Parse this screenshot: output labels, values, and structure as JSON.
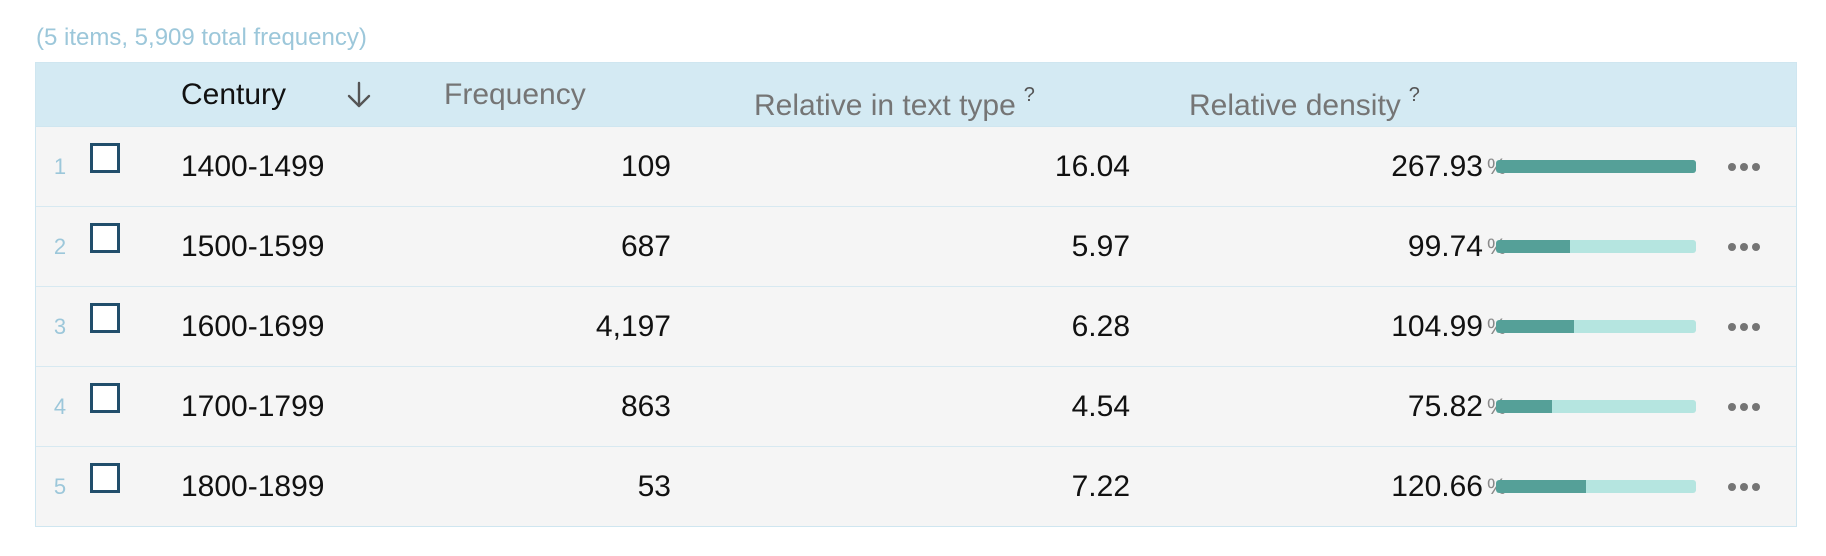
{
  "summary": "(5 items, 5,909 total frequency)",
  "columns": {
    "century": "Century",
    "frequency": "Frequency",
    "relative_text_type": "Relative in text type",
    "relative_density": "Relative density",
    "help_mark": "?"
  },
  "sort_icon": "arrow-down-icon",
  "rows": [
    {
      "index": "1",
      "century": "1400-1499",
      "frequency": "109",
      "relative_text_type": "16.04",
      "relative_density": "267.93",
      "percent_sign": "%",
      "bar_fill": 1.0
    },
    {
      "index": "2",
      "century": "1500-1599",
      "frequency": "687",
      "relative_text_type": "5.97",
      "relative_density": "99.74",
      "percent_sign": "%",
      "bar_fill": 0.37
    },
    {
      "index": "3",
      "century": "1600-1699",
      "frequency": "4,197",
      "relative_text_type": "6.28",
      "relative_density": "104.99",
      "percent_sign": "%",
      "bar_fill": 0.39
    },
    {
      "index": "4",
      "century": "1700-1799",
      "frequency": "863",
      "relative_text_type": "4.54",
      "relative_density": "75.82",
      "percent_sign": "%",
      "bar_fill": 0.28
    },
    {
      "index": "5",
      "century": "1800-1899",
      "frequency": "53",
      "relative_text_type": "7.22",
      "relative_density": "120.66",
      "percent_sign": "%",
      "bar_fill": 0.45
    }
  ],
  "colors": {
    "header_bg": "#d4eaf3",
    "row_bg": "#f5f5f5",
    "bar_fill": "#55a098",
    "bar_track": "#b5e5e0",
    "checkbox_border": "#214e6b",
    "index_text": "#9cc7da"
  }
}
